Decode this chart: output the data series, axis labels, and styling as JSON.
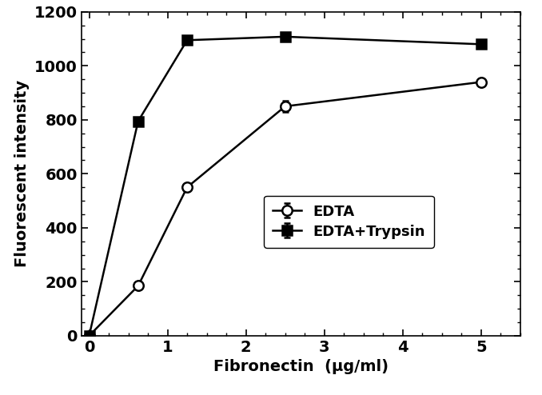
{
  "edta_x": [
    0,
    0.625,
    1.25,
    2.5,
    5.0
  ],
  "edta_y": [
    0,
    185,
    550,
    850,
    940
  ],
  "edta_yerr": [
    0,
    0,
    0,
    20,
    0
  ],
  "trypsin_x": [
    0,
    0.625,
    1.25,
    2.5,
    5.0
  ],
  "trypsin_y": [
    0,
    795,
    1095,
    1108,
    1080
  ],
  "trypsin_yerr": [
    0,
    0,
    15,
    15,
    0
  ],
  "xlabel": "Fibronectin  (μg/ml)",
  "ylabel": "Fluorescent intensity",
  "xlim": [
    -0.1,
    5.5
  ],
  "ylim": [
    0,
    1200
  ],
  "yticks": [
    0,
    200,
    400,
    600,
    800,
    1000,
    1200
  ],
  "xticks": [
    0,
    1,
    2,
    3,
    4,
    5
  ],
  "legend_edta": "EDTA",
  "legend_trypsin": "EDTA+Trypsin",
  "line_color": "#000000",
  "background_color": "#ffffff",
  "label_fontsize": 14,
  "tick_fontsize": 14,
  "legend_fontsize": 13
}
